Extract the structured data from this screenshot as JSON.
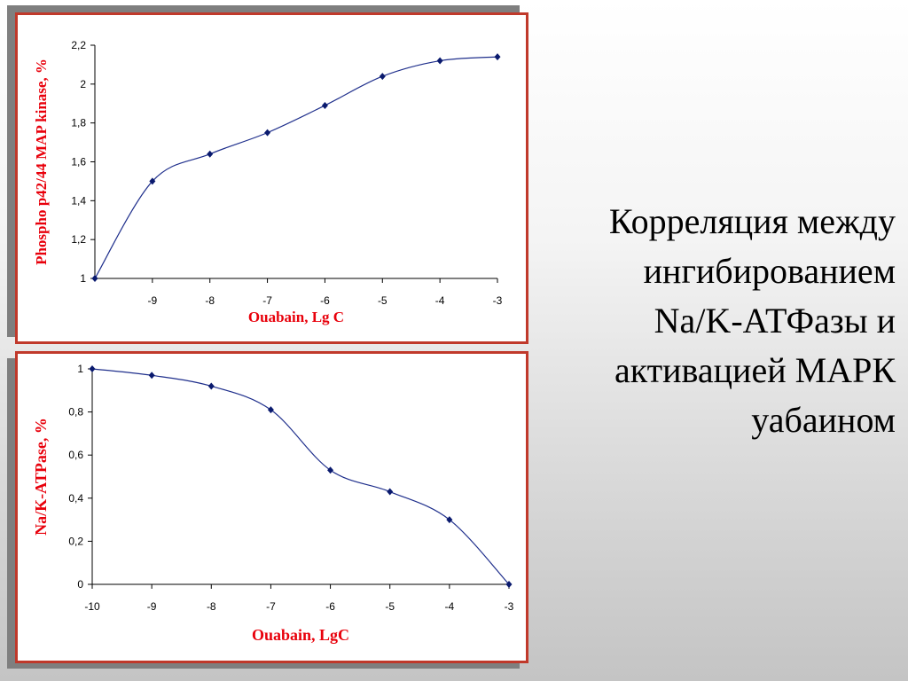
{
  "caption": {
    "lines": [
      "Корреляция между",
      "ингибированием",
      "Na/K-АТФазы и",
      "активацией МАРК",
      "уабаином"
    ]
  },
  "colors": {
    "frame": "#c0392b",
    "axis_title": "#e8000b",
    "series": "#1f2f8c"
  },
  "chart_data": [
    {
      "type": "line",
      "xlabel": "Ouabain, Lg C",
      "ylabel": "Phospho p42/44 MAP kinase, %",
      "xlim": [
        -10,
        -3
      ],
      "ylim": [
        1,
        2.2
      ],
      "x_ticks": [
        -9,
        -8,
        -7,
        -6,
        -5,
        -4,
        -3
      ],
      "x_tick_labels": [
        "-9",
        "-8",
        "-7",
        "-6",
        "-5",
        "-4",
        "-3"
      ],
      "y_ticks": [
        1,
        1.2,
        1.4,
        1.6,
        1.8,
        2,
        2.2
      ],
      "y_tick_labels": [
        "1",
        "1,2",
        "1,4",
        "1,6",
        "1,8",
        "2",
        "2,2"
      ],
      "grid": false,
      "series": [
        {
          "x": [
            -10,
            -9,
            -8,
            -7,
            -6,
            -5,
            -4,
            -3
          ],
          "values": [
            1.0,
            1.5,
            1.64,
            1.75,
            1.89,
            2.04,
            2.12,
            2.14
          ]
        }
      ]
    },
    {
      "type": "line",
      "xlabel": "Ouabain, LgC",
      "ylabel": "Na/K-ATPase, %",
      "xlim": [
        -10,
        -3
      ],
      "ylim": [
        0,
        1
      ],
      "x_ticks": [
        -10,
        -9,
        -8,
        -7,
        -6,
        -5,
        -4,
        -3
      ],
      "x_tick_labels": [
        "-10",
        "-9",
        "-8",
        "-7",
        "-6",
        "-5",
        "-4",
        "-3"
      ],
      "y_ticks": [
        0,
        0.2,
        0.4,
        0.6,
        0.8,
        1
      ],
      "y_tick_labels": [
        "0",
        "0,2",
        "0,4",
        "0,6",
        "0,8",
        "1"
      ],
      "grid": false,
      "series": [
        {
          "x": [
            -10,
            -9,
            -8,
            -7,
            -6,
            -5,
            -4,
            -3
          ],
          "values": [
            1.0,
            0.97,
            0.92,
            0.81,
            0.53,
            0.43,
            0.3,
            0.0
          ]
        }
      ]
    }
  ]
}
